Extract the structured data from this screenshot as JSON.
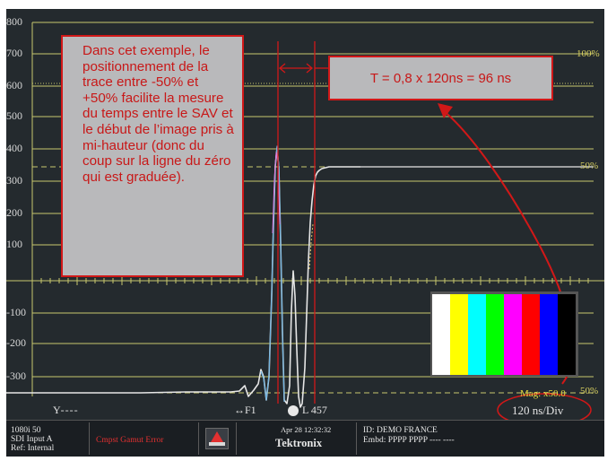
{
  "y_axis": {
    "labels": [
      "800",
      "700",
      "600",
      "500",
      "400",
      "300",
      "200",
      "100",
      "-100",
      "-200",
      "-300"
    ],
    "percent_labels": [
      "100%",
      "50%",
      "50%"
    ]
  },
  "annotations": {
    "note_text": "Dans cet exemple, le positionnement de la trace entre -50% et +50% facilite la mesure du temps entre le SAV et le début de l’image pris à mi-hauteur (donc du coup sur la ligne du zéro qui est graduée).",
    "formula": "T = 0,8 x 120ns = 96 ns"
  },
  "readouts": {
    "channel": "Y",
    "field": "F1",
    "line": "L 457",
    "mag": "Mag: x50.0",
    "timebase": "120 ns/Div"
  },
  "status_bar": {
    "format": "1080i 50",
    "input": "SDI Input A",
    "ref": "Ref: Internal",
    "error": "Cmpst Gamut Error",
    "datetime": "Apr 28 12:32:32",
    "brand": "Tektronix",
    "id": "ID: DEMO FRANCE",
    "embd": "Embd: PPPP PPPP ---- ----"
  },
  "colors": {
    "scope_bg": "#242a2e",
    "grid": "#c8c86e",
    "trace": "#e6e6e6",
    "annotation_red": "#d11818",
    "box_fill": "#b9b9bb",
    "status_bg": "#1a1e22"
  },
  "icons": [
    "alarm-icon",
    "pointer-icon",
    "field-arrow-icon"
  ],
  "color_bars": [
    "#ffffff",
    "#ffff00",
    "#00ffff",
    "#00ff00",
    "#ff00ff",
    "#ff0000",
    "#0000ff",
    "#000000"
  ]
}
